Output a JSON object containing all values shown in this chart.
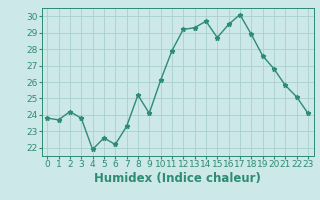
{
  "x": [
    0,
    1,
    2,
    3,
    4,
    5,
    6,
    7,
    8,
    9,
    10,
    11,
    12,
    13,
    14,
    15,
    16,
    17,
    18,
    19,
    20,
    21,
    22,
    23
  ],
  "y": [
    23.8,
    23.7,
    24.2,
    23.8,
    21.9,
    22.6,
    22.2,
    23.3,
    25.2,
    24.1,
    26.1,
    27.9,
    29.2,
    29.3,
    29.7,
    28.7,
    29.5,
    30.1,
    28.9,
    27.6,
    26.8,
    25.8,
    25.1,
    24.1
  ],
  "line_color": "#2e8b74",
  "marker": "*",
  "marker_color": "#2e8b74",
  "bg_color": "#cce8e8",
  "grid_color": "#aacfcf",
  "xlabel": "Humidex (Indice chaleur)",
  "ylim": [
    21.5,
    30.5
  ],
  "xlim": [
    -0.5,
    23.5
  ],
  "yticks": [
    22,
    23,
    24,
    25,
    26,
    27,
    28,
    29,
    30
  ],
  "xticks": [
    0,
    1,
    2,
    3,
    4,
    5,
    6,
    7,
    8,
    9,
    10,
    11,
    12,
    13,
    14,
    15,
    16,
    17,
    18,
    19,
    20,
    21,
    22,
    23
  ],
  "tick_fontsize": 6.5,
  "label_fontsize": 8.5,
  "line_width": 1.0,
  "marker_size": 3.5
}
